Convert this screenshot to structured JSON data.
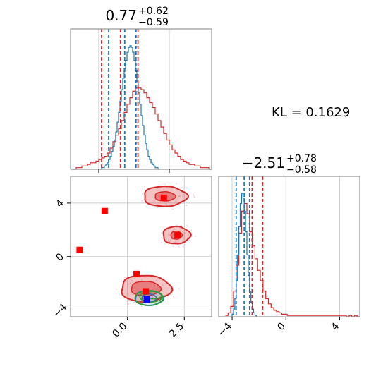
{
  "colors": {
    "model_a": "#d62728",
    "model_b": "#1f77b4",
    "contour_b": "#2ca02c",
    "marker_a": "#ff0000",
    "marker_b": "#0000ff",
    "grid": "#cccccc",
    "frame": "#808080"
  },
  "kl_label": "KL = 0.1629",
  "chart_data": [
    {
      "type": "histogram",
      "panel": "top-left",
      "title": {
        "value": "0.77",
        "upper": "+0.62",
        "lower": "−0.59"
      },
      "xlim": [
        -1.0,
        4.0
      ],
      "x_ticks": [
        0.0,
        2.5
      ],
      "tick_labels_shown": false,
      "grid": true,
      "quantile_lines": [
        {
          "series": "red",
          "values": [
            0.1,
            0.77,
            1.39
          ]
        },
        {
          "series": "blue",
          "values": [
            0.35,
            0.92,
            1.32
          ]
        }
      ],
      "series": [
        {
          "name": "red",
          "bin_start": -0.9,
          "bin_width": 0.1,
          "counts": [
            0,
            1,
            1,
            2,
            2,
            3,
            4,
            4,
            5,
            6,
            7,
            8,
            10,
            13,
            17,
            21,
            25,
            30,
            35,
            40,
            44,
            48,
            50,
            50,
            49,
            47,
            44,
            41,
            38,
            34,
            30,
            26,
            22,
            18,
            15,
            12,
            10,
            8,
            6,
            5,
            4,
            3,
            3,
            2,
            2,
            1,
            1,
            1,
            0
          ]
        },
        {
          "name": "blue",
          "bin_start": 0.05,
          "bin_width": 0.05,
          "counts": [
            0,
            1,
            1,
            2,
            3,
            4,
            6,
            8,
            11,
            14,
            18,
            23,
            29,
            35,
            42,
            49,
            56,
            62,
            67,
            72,
            75,
            76,
            75,
            72,
            67,
            61,
            54,
            47,
            40,
            33,
            27,
            21,
            16,
            12,
            8,
            6,
            4,
            3,
            2,
            1,
            1,
            0
          ]
        }
      ]
    },
    {
      "type": "histogram",
      "panel": "bottom-right",
      "title": {
        "value": "−2.51",
        "upper": "+0.78",
        "lower": "−0.58"
      },
      "xlim": [
        -5.0,
        5.5
      ],
      "x_ticks": [
        -4,
        0,
        4
      ],
      "x_tick_labels": [
        "−4",
        "0",
        "4"
      ],
      "grid": true,
      "quantile_lines": [
        {
          "series": "red",
          "values": [
            -3.09,
            -2.51,
            -1.73
          ]
        },
        {
          "series": "blue",
          "values": [
            -3.7,
            -3.1,
            -2.7
          ]
        }
      ],
      "series": [
        {
          "name": "red",
          "bin_start": -4.5,
          "bin_width": 0.2,
          "counts": [
            1,
            3,
            8,
            20,
            40,
            65,
            82,
            88,
            80,
            66,
            55,
            45,
            36,
            28,
            20,
            14,
            10,
            7,
            5,
            4,
            3,
            2,
            2,
            1,
            1,
            1,
            1,
            1,
            1,
            1,
            1,
            1,
            1,
            1,
            1,
            1,
            1,
            1,
            1,
            1,
            1,
            1,
            1,
            1,
            1,
            0,
            1,
            0,
            1,
            0
          ]
        },
        {
          "name": "blue",
          "bin_start": -4.1,
          "bin_width": 0.1,
          "counts": [
            0,
            2,
            6,
            14,
            28,
            48,
            70,
            88,
            96,
            92,
            82,
            66,
            48,
            32,
            20,
            11,
            6,
            3,
            1,
            0
          ]
        }
      ]
    },
    {
      "type": "contour",
      "panel": "bottom-left",
      "xlim": [
        -2.5,
        3.7
      ],
      "ylim": [
        -4.5,
        6.0
      ],
      "x_ticks": [
        0.0,
        2.5
      ],
      "x_tick_labels": [
        "0.0",
        "2.5"
      ],
      "y_ticks": [
        -4,
        0,
        4
      ],
      "y_tick_labels": [
        "−4",
        "0",
        "4"
      ],
      "grid": true,
      "series": [
        {
          "name": "red",
          "regions": [
            {
              "center": [
                0.8,
                -2.4
              ],
              "radii_outer": [
                1.1,
                1.0
              ],
              "radii_inner": [
                0.65,
                0.55
              ]
            },
            {
              "center": [
                1.65,
                4.5
              ],
              "radii_outer": [
                0.95,
                0.75
              ],
              "radii_inner": [
                0.45,
                0.35
              ]
            },
            {
              "center": [
                2.15,
                1.6
              ],
              "radii_outer": [
                0.6,
                0.65
              ],
              "radii_inner": [
                0.25,
                0.3
              ]
            }
          ],
          "markers": [
            [
              -1.0,
              3.4
            ],
            [
              -2.1,
              0.5
            ],
            [
              0.4,
              -1.3
            ],
            [
              1.6,
              4.4
            ],
            [
              2.2,
              1.6
            ],
            [
              0.8,
              -2.6
            ]
          ]
        },
        {
          "name": "blue",
          "regions": [
            {
              "center": [
                0.95,
                -3.1
              ],
              "radii_outer": [
                0.62,
                0.55
              ],
              "radii_inner": [
                0.32,
                0.3
              ]
            }
          ],
          "markers": [
            [
              0.85,
              -3.2
            ]
          ]
        }
      ]
    }
  ]
}
